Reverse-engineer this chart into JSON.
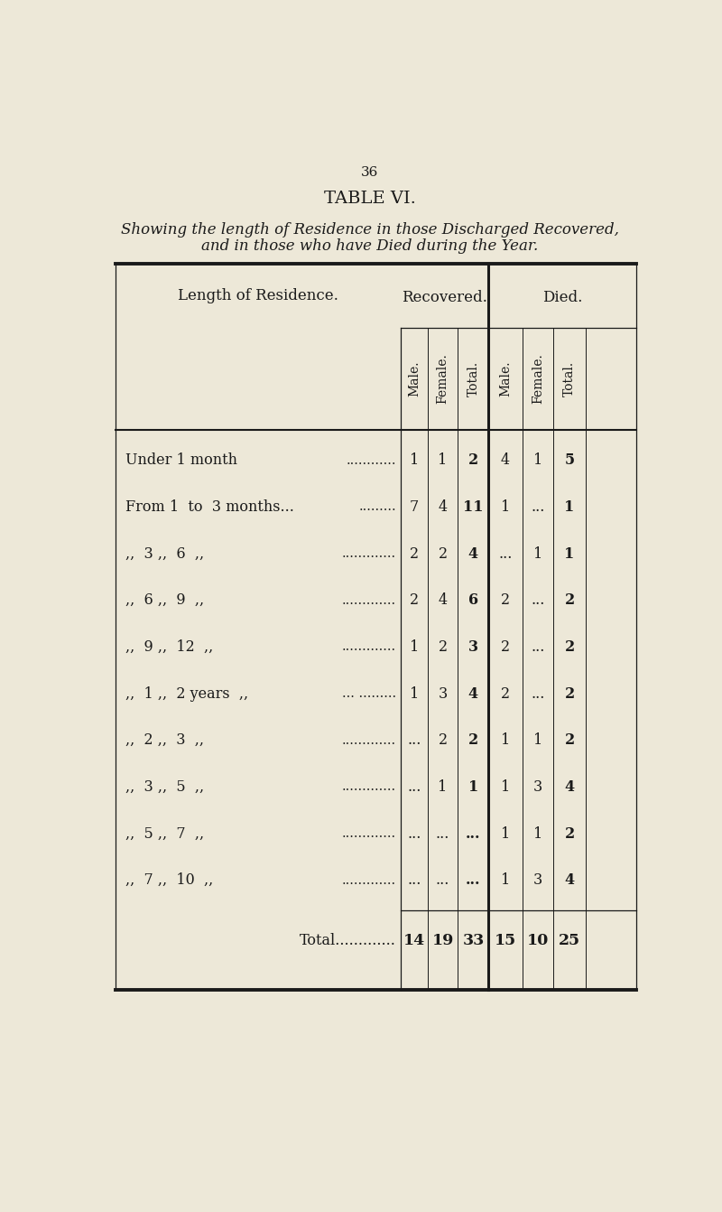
{
  "page_number": "36",
  "title": "TABLE VI.",
  "subtitle_line1": "Showing the length of Residence in those Discharged Recovered,",
  "subtitle_line2": "and in those who have Died during the Year.",
  "bg_color": "#ede8d8",
  "col_header_top": [
    "Recovered.",
    "Died."
  ],
  "col_header_sub": [
    "Male.",
    "Female.",
    "Total.",
    "Male.",
    "Female.",
    "Total."
  ],
  "row_label_col": "Length of Residence.",
  "rows": [
    {
      "label": "Under 1 month",
      "dots": "............",
      "rec_m": "1",
      "rec_f": "1",
      "rec_t": "2",
      "die_m": "4",
      "die_f": "1",
      "die_t": "5"
    },
    {
      "label": "From 1  to  3 months...",
      "dots": ".........",
      "rec_m": "7",
      "rec_f": "4",
      "rec_t": "11",
      "die_m": "1",
      "die_f": "...",
      "die_t": "1"
    },
    {
      "““_label": true,
      "n1": "3",
      "n2": "6",
      "unit": ",,",
      "dots": ".............",
      "rec_m": "2",
      "rec_f": "2",
      "rec_t": "4",
      "die_m": "...",
      "die_f": "1",
      "die_t": "1"
    },
    {
      "““_label": true,
      "n1": "6",
      "n2": "9",
      "unit": ",,",
      "dots": ".............",
      "rec_m": "2",
      "rec_f": "4",
      "rec_t": "6",
      "die_m": "2",
      "die_f": "...",
      "die_t": "2"
    },
    {
      "““_label": true,
      "n1": "9",
      "n2": "12",
      "unit": ",,",
      "dots": ".............",
      "rec_m": "1",
      "rec_f": "2",
      "rec_t": "3",
      "die_m": "2",
      "die_f": "...",
      "die_t": "2"
    },
    {
      "““_label": true,
      "n1": "1",
      "n2": "2 years",
      "unit": ",,",
      "dots": "... .........",
      "rec_m": "1",
      "rec_f": "3",
      "rec_t": "4",
      "die_m": "2",
      "die_f": "...",
      "die_t": "2"
    },
    {
      "““_label": true,
      "n1": "2",
      "n2": "3",
      "unit": ",,",
      "dots": ".............",
      "rec_m": "...",
      "rec_f": "2",
      "rec_t": "2",
      "die_m": "1",
      "die_f": "1",
      "die_t": "2"
    },
    {
      "““_label": true,
      "n1": "3",
      "n2": "5",
      "unit": ",,",
      "dots": ".............",
      "rec_m": "...",
      "rec_f": "1",
      "rec_t": "1",
      "die_m": "1",
      "die_f": "3",
      "die_t": "4"
    },
    {
      "““_label": true,
      "n1": "5",
      "n2": "7",
      "unit": ",,",
      "dots": ".............",
      "rec_m": "...",
      "rec_f": "...",
      "rec_t": "...",
      "die_m": "1",
      "die_f": "1",
      "die_t": "2"
    },
    {
      "““_label": true,
      "n1": "7",
      "n2": "10",
      "unit": ",,",
      "dots": ".............",
      "rec_m": "...",
      "rec_f": "...",
      "rec_t": "...",
      "die_m": "1",
      "die_f": "3",
      "die_t": "4"
    }
  ],
  "total_row": {
    "rec_m": "14",
    "rec_f": "19",
    "rec_t": "33",
    "die_m": "15",
    "die_f": "10",
    "die_t": "25"
  },
  "text_color": "#1a1a1a",
  "line_color": "#1a1a1a"
}
